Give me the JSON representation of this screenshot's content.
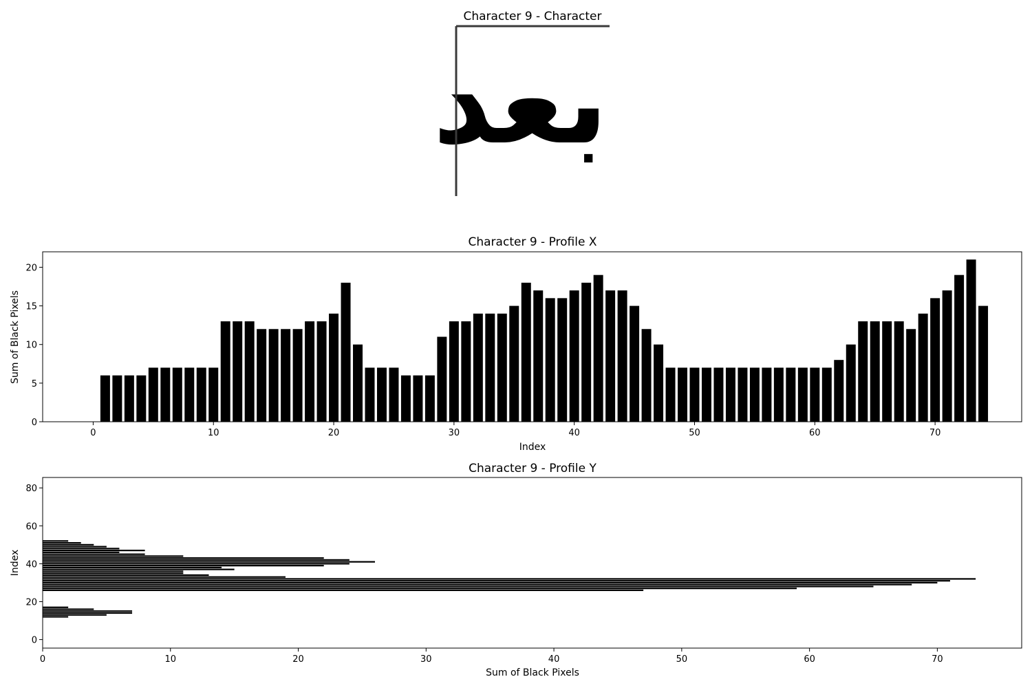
{
  "chart_data": [
    {
      "type": "image",
      "title": "Character 9 - Character",
      "glyph_text": "بعد"
    },
    {
      "type": "bar",
      "title": "Character 9 - Profile X",
      "xlabel": "Index",
      "ylabel": "Sum of Black Pixels",
      "xlim": [
        -4.2,
        77.2
      ],
      "ylim": [
        0,
        22
      ],
      "xticks": [
        0,
        10,
        20,
        30,
        40,
        50,
        60,
        70
      ],
      "yticks": [
        0,
        5,
        10,
        15,
        20
      ],
      "x_start": 1,
      "values": [
        6,
        6,
        6,
        6,
        7,
        7,
        7,
        7,
        7,
        7,
        13,
        13,
        13,
        12,
        12,
        12,
        12,
        13,
        13,
        14,
        18,
        10,
        7,
        7,
        7,
        6,
        6,
        6,
        11,
        13,
        13,
        14,
        14,
        14,
        15,
        18,
        17,
        16,
        16,
        17,
        18,
        19,
        17,
        17,
        15,
        12,
        10,
        7,
        7,
        7,
        7,
        7,
        7,
        7,
        7,
        7,
        7,
        7,
        7,
        7,
        7,
        8,
        10,
        13,
        13,
        13,
        13,
        12,
        14,
        16,
        17,
        19,
        21,
        15
      ],
      "color": "#000000"
    },
    {
      "type": "bar",
      "orientation": "horizontal",
      "title": "Character 9 - Profile Y",
      "xlabel": "Sum of Black Pixels",
      "ylabel": "Index",
      "xlim": [
        0,
        76.6
      ],
      "ylim": [
        -4.5,
        85.5
      ],
      "xticks": [
        0,
        10,
        20,
        30,
        40,
        50,
        60,
        70
      ],
      "yticks": [
        0,
        20,
        40,
        60,
        80
      ],
      "y_start": 12,
      "values": [
        2,
        5,
        7,
        7,
        4,
        2,
        0,
        0,
        0,
        0,
        0,
        0,
        0,
        0,
        47,
        59,
        65,
        68,
        70,
        71,
        73,
        19,
        13,
        11,
        11,
        15,
        14,
        22,
        24,
        26,
        24,
        22,
        11,
        8,
        6,
        8,
        6,
        5,
        4,
        3,
        2
      ],
      "color": "#000000"
    }
  ]
}
